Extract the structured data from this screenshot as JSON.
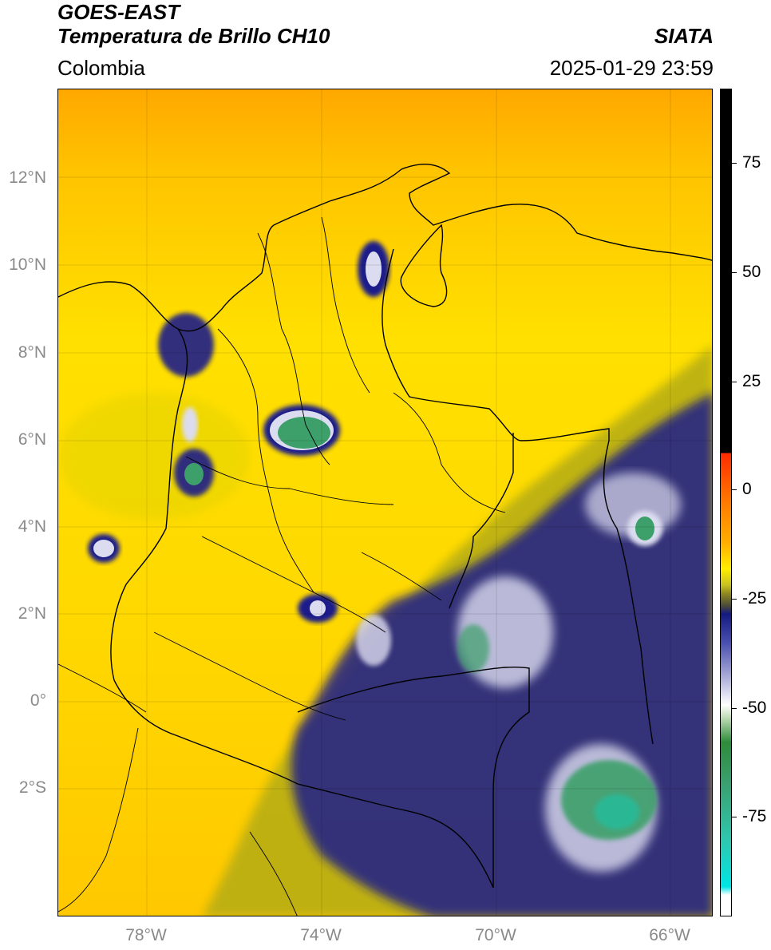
{
  "header": {
    "title_line1": "GOES-EAST",
    "title_line2": "Temperatura de Brillo CH10",
    "region": "Colombia",
    "brand": "SIATA",
    "timestamp": "2025-01-29 23:59"
  },
  "map": {
    "lat_labels": [
      "12°N",
      "10°N",
      "8°N",
      "6°N",
      "4°N",
      "2°N",
      "0°",
      "2°S"
    ],
    "lon_labels": [
      "78°W",
      "74°W",
      "70°W",
      "66°W"
    ],
    "colors": {
      "warm_orange": "#ffb000",
      "warm_yellow": "#ffe600",
      "olive": "#9c9a1c",
      "deep_blue": "#1a1f8a",
      "pale_lavender": "#dcdcf0",
      "cloud_green": "#3da06a",
      "teal": "#2bb894",
      "border_line": "#000000"
    }
  },
  "colorbar": {
    "ticks": [
      "75",
      "50",
      "25",
      "0",
      "-25",
      "-50",
      "-75"
    ],
    "colors": {
      "black": "#000000",
      "red": "#ff2a00",
      "orange": "#ff9a00",
      "yellow": "#ffee00",
      "olive": "#8f8a1e",
      "navy": "#141a80",
      "white": "#ffffff",
      "green": "#2e8b3a",
      "cyan": "#00e5e5"
    }
  }
}
